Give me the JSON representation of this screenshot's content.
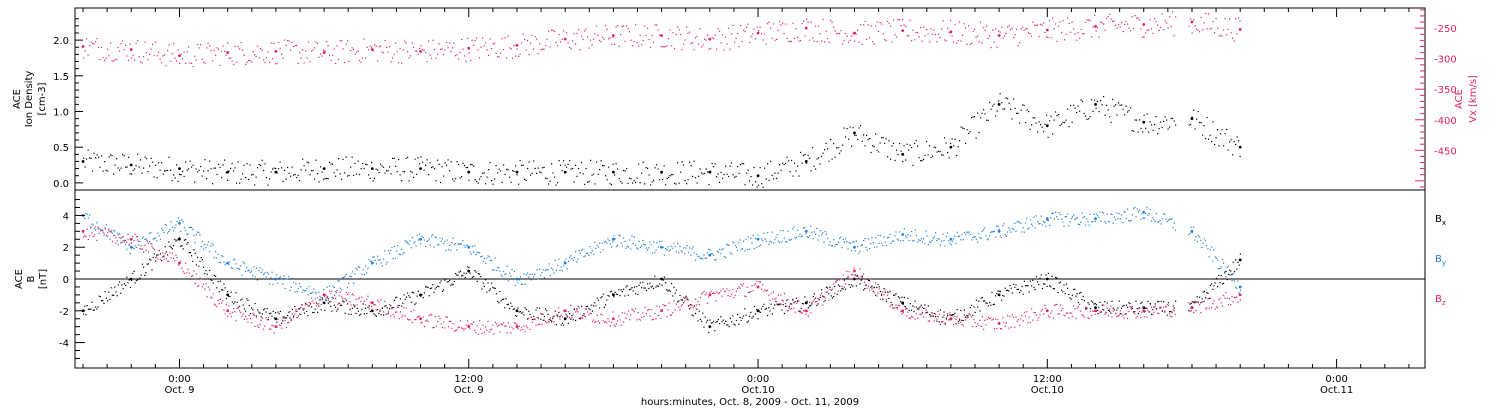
{
  "colors": {
    "black": "#000000",
    "pink": "#e0245e",
    "blue": "#1f7fd6"
  },
  "x_axis": {
    "label": "hours:minutes, Oct. 8, 2009 - Oct. 11, 2009",
    "range": [
      "2009-10-08T19:40",
      "2009-10-11T03:40"
    ],
    "ticks": [
      {
        "time": "2009-10-09T00:00",
        "hm": "0:00",
        "date": "Oct. 9"
      },
      {
        "time": "2009-10-09T12:00",
        "hm": "12:00",
        "date": "Oct. 9"
      },
      {
        "time": "2009-10-10T00:00",
        "hm": "0:00",
        "date": "Oct.10"
      },
      {
        "time": "2009-10-10T12:00",
        "hm": "12:00",
        "date": "Oct.10"
      },
      {
        "time": "2009-10-11T00:00",
        "hm": "0:00",
        "date": "Oct.11"
      }
    ]
  },
  "chart_data": [
    {
      "type": "scatter",
      "title": "",
      "ylabel": "ACE Ion Density [cm-3]",
      "ylabel_lines": [
        "ACE",
        "Ion Density",
        "[cm-3]"
      ],
      "ylim": [
        -0.1,
        2.45
      ],
      "yticks": [
        "0.0",
        "0.5",
        "1.0",
        "1.5",
        "2.0"
      ],
      "y2label": "ACE Vx [km/s]",
      "y2label_lines": [
        "ACE",
        "Vx [km/s]"
      ],
      "y2lim": [
        -515,
        -217
      ],
      "y2ticks": [
        "-250",
        "-300",
        "-350",
        "-400",
        "-450"
      ],
      "series": [
        {
          "color": "#000000",
          "axis": "left",
          "quantity": "Ion Density [cm-3]",
          "x": [
            "2009-10-08T20:00",
            "2009-10-08T22:00",
            "2009-10-09T00:00",
            "2009-10-09T02:00",
            "2009-10-09T04:00",
            "2009-10-09T06:00",
            "2009-10-09T08:00",
            "2009-10-09T10:00",
            "2009-10-09T12:00",
            "2009-10-09T14:00",
            "2009-10-09T16:00",
            "2009-10-09T18:00",
            "2009-10-09T20:00",
            "2009-10-09T22:00",
            "2009-10-10T00:00",
            "2009-10-10T02:00",
            "2009-10-10T04:00",
            "2009-10-10T06:00",
            "2009-10-10T08:00",
            "2009-10-10T10:00",
            "2009-10-10T12:00",
            "2009-10-10T14:00",
            "2009-10-10T16:00",
            "2009-10-10T18:00",
            "2009-10-10T20:00"
          ],
          "y": [
            0.3,
            0.25,
            0.2,
            0.15,
            0.15,
            0.2,
            0.2,
            0.2,
            0.15,
            0.15,
            0.15,
            0.15,
            0.15,
            0.15,
            0.1,
            0.3,
            0.7,
            0.4,
            0.5,
            1.1,
            0.8,
            1.1,
            0.85,
            0.9,
            0.5
          ]
        },
        {
          "color": "#e0245e",
          "axis": "right",
          "quantity": "Vx [km/s]",
          "x": [
            "2009-10-08T20:00",
            "2009-10-08T22:00",
            "2009-10-09T00:00",
            "2009-10-09T02:00",
            "2009-10-09T04:00",
            "2009-10-09T06:00",
            "2009-10-09T08:00",
            "2009-10-09T10:00",
            "2009-10-09T12:00",
            "2009-10-09T14:00",
            "2009-10-09T16:00",
            "2009-10-09T18:00",
            "2009-10-09T20:00",
            "2009-10-09T22:00",
            "2009-10-10T00:00",
            "2009-10-10T02:00",
            "2009-10-10T04:00",
            "2009-10-10T06:00",
            "2009-10-10T08:00",
            "2009-10-10T10:00",
            "2009-10-10T12:00",
            "2009-10-10T14:00",
            "2009-10-10T16:00",
            "2009-10-10T18:00",
            "2009-10-10T20:00"
          ],
          "y": [
            -280,
            -285,
            -295,
            -290,
            -288,
            -290,
            -285,
            -288,
            -283,
            -278,
            -268,
            -262,
            -262,
            -268,
            -258,
            -250,
            -258,
            -254,
            -256,
            -262,
            -253,
            -247,
            -244,
            -240,
            -252
          ]
        }
      ]
    },
    {
      "type": "scatter",
      "title": "",
      "ylabel": "ACE B [nT]",
      "ylabel_lines": [
        "ACE",
        "B",
        "[nT]"
      ],
      "ylim": [
        -5.6,
        5.6
      ],
      "yticks": [
        "4",
        "2",
        "0",
        "-2",
        "-4"
      ],
      "zero_line": true,
      "series": [
        {
          "name": "Bx",
          "color": "#000000",
          "x": [
            "2009-10-08T20:00",
            "2009-10-08T22:00",
            "2009-10-09T00:00",
            "2009-10-09T02:00",
            "2009-10-09T04:00",
            "2009-10-09T06:00",
            "2009-10-09T08:00",
            "2009-10-09T10:00",
            "2009-10-09T12:00",
            "2009-10-09T14:00",
            "2009-10-09T16:00",
            "2009-10-09T18:00",
            "2009-10-09T20:00",
            "2009-10-09T22:00",
            "2009-10-10T00:00",
            "2009-10-10T02:00",
            "2009-10-10T04:00",
            "2009-10-10T06:00",
            "2009-10-10T08:00",
            "2009-10-10T10:00",
            "2009-10-10T12:00",
            "2009-10-10T14:00",
            "2009-10-10T16:00",
            "2009-10-10T18:00",
            "2009-10-10T20:00"
          ],
          "y": [
            -2,
            0,
            2.5,
            -1,
            -2.5,
            -1.5,
            -2,
            -1,
            0.5,
            -2,
            -2.5,
            -1,
            0,
            -3,
            -2,
            -1.5,
            0,
            -1.5,
            -2.5,
            -1,
            0,
            -1.8,
            -1.8,
            -1.8,
            1.2
          ]
        },
        {
          "name": "By",
          "color": "#1f7fd6",
          "x": [
            "2009-10-08T20:00",
            "2009-10-08T22:00",
            "2009-10-09T00:00",
            "2009-10-09T02:00",
            "2009-10-09T04:00",
            "2009-10-09T06:00",
            "2009-10-09T08:00",
            "2009-10-09T10:00",
            "2009-10-09T12:00",
            "2009-10-09T14:00",
            "2009-10-09T16:00",
            "2009-10-09T18:00",
            "2009-10-09T20:00",
            "2009-10-09T22:00",
            "2009-10-10T00:00",
            "2009-10-10T02:00",
            "2009-10-10T04:00",
            "2009-10-10T06:00",
            "2009-10-10T08:00",
            "2009-10-10T10:00",
            "2009-10-10T12:00",
            "2009-10-10T14:00",
            "2009-10-10T16:00",
            "2009-10-10T18:00",
            "2009-10-10T20:00"
          ],
          "y": [
            4,
            2,
            3.5,
            1,
            0,
            -1,
            1,
            2.5,
            2,
            0,
            1,
            2.5,
            2,
            1.5,
            2.5,
            3,
            2,
            2.8,
            2.5,
            3,
            3.8,
            3.8,
            4.2,
            3,
            -0.5
          ]
        },
        {
          "name": "Bz",
          "color": "#e0245e",
          "x": [
            "2009-10-08T20:00",
            "2009-10-08T22:00",
            "2009-10-09T00:00",
            "2009-10-09T02:00",
            "2009-10-09T04:00",
            "2009-10-09T06:00",
            "2009-10-09T08:00",
            "2009-10-09T10:00",
            "2009-10-09T12:00",
            "2009-10-09T14:00",
            "2009-10-09T16:00",
            "2009-10-09T18:00",
            "2009-10-09T20:00",
            "2009-10-09T22:00",
            "2009-10-10T00:00",
            "2009-10-10T02:00",
            "2009-10-10T04:00",
            "2009-10-10T06:00",
            "2009-10-10T08:00",
            "2009-10-10T10:00",
            "2009-10-10T12:00",
            "2009-10-10T14:00",
            "2009-10-10T16:00",
            "2009-10-10T18:00",
            "2009-10-10T20:00"
          ],
          "y": [
            3,
            2.5,
            1,
            -2,
            -3,
            -1,
            -1.5,
            -2.5,
            -3,
            -3,
            -2,
            -2.5,
            -2,
            -1,
            -0.5,
            -2,
            0.5,
            -2,
            -2.5,
            -2.8,
            -2,
            -2,
            -2,
            -1.8,
            -1
          ]
        }
      ]
    }
  ]
}
